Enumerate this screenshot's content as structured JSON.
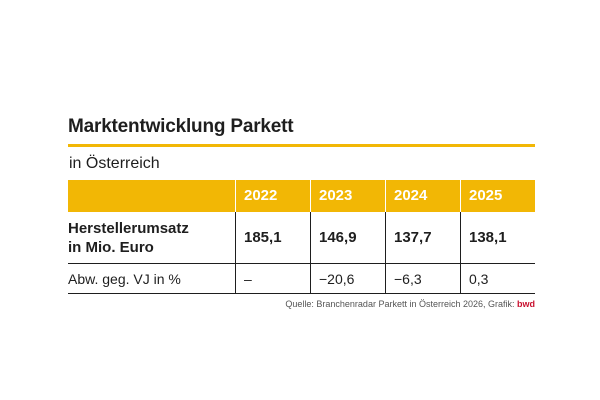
{
  "title": "Marktentwicklung Parkett",
  "subtitle": "in Österreich",
  "chart_data": {
    "type": "table",
    "columns": [
      "",
      "2022",
      "2023",
      "2024",
      "2025"
    ],
    "rows": [
      {
        "label": "Herstellerumsatz in Mio. Euro",
        "label_lines": [
          "Herstellerumsatz",
          "in Mio. Euro"
        ],
        "values": [
          "185,1",
          "146,9",
          "137,7",
          "138,1"
        ]
      },
      {
        "label": "Abw. geg. VJ in %",
        "values": [
          "–",
          "−20,6",
          "−6,3",
          "0,3"
        ]
      }
    ]
  },
  "source_text": "Quelle: Branchenradar Parkett in Österreich 2026, Grafik: ",
  "source_brand": "bwd",
  "colors": {
    "accent": "#f2b705",
    "brand": "#c8102e",
    "text": "#1e1e1e"
  }
}
